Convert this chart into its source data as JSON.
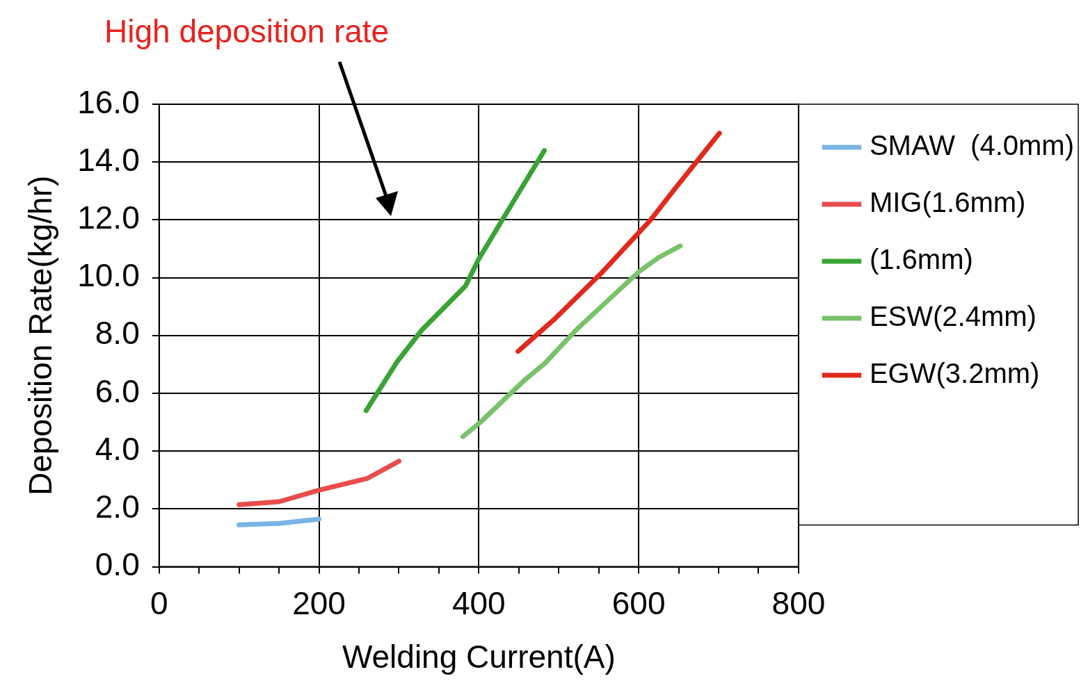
{
  "chart_data": {
    "type": "line",
    "xlabel": "Welding Current(A)",
    "ylabel": "Deposition Rate(kg/hr)",
    "annotations": [
      "High deposition rate"
    ],
    "xlim": [
      0,
      800
    ],
    "xticks": [
      0,
      {
        "value": 50,
        "label": null
      },
      {
        "value": 100,
        "label": null
      },
      {
        "value": 150,
        "label": null
      },
      200,
      {
        "value": 250,
        "label": null
      },
      {
        "value": 300,
        "label": null
      },
      {
        "value": 350,
        "label": null
      },
      400,
      {
        "value": 450,
        "label": null
      },
      {
        "value": 500,
        "label": null
      },
      {
        "value": 550,
        "label": null
      },
      600,
      {
        "value": 650,
        "label": null
      },
      {
        "value": 700,
        "label": null
      },
      {
        "value": 750,
        "label": null
      },
      800
    ],
    "ylim": [
      0,
      16
    ],
    "yticks": [
      {
        "value": 0,
        "label": "0.0"
      },
      {
        "value": 2,
        "label": "2.0"
      },
      {
        "value": 4,
        "label": "4.0"
      },
      {
        "value": 6,
        "label": "6.0"
      },
      {
        "value": 8,
        "label": "8.0"
      },
      {
        "value": 10,
        "label": "10.0"
      },
      {
        "value": 12,
        "label": "12.0"
      },
      {
        "value": 14,
        "label": "14.0"
      },
      {
        "value": 16,
        "label": "16.0"
      }
    ],
    "grid": true,
    "legend": "right",
    "marker": "none",
    "line_style": "solid",
    "series": [
      {
        "name": "SMAW  (4.0mm)",
        "color": "#7ab4e6",
        "x": [
          100,
          150,
          200
        ],
        "values": [
          1.45,
          1.5,
          1.65
        ]
      },
      {
        "name": "MIG(1.6mm)",
        "color": "#e84c4c",
        "x": [
          100,
          150,
          200,
          260,
          300
        ],
        "values": [
          2.15,
          2.25,
          2.65,
          3.05,
          3.65
        ]
      },
      {
        "name": "(1.6mm)",
        "color": "#3aa335",
        "x": [
          259,
          298,
          329,
          383,
          400,
          449,
          482
        ],
        "values": [
          5.4,
          7.1,
          8.2,
          9.7,
          10.65,
          12.9,
          14.4
        ]
      },
      {
        "name": "ESW(2.4mm)",
        "color": "#78c26a",
        "x": [
          380,
          402,
          457,
          483,
          522,
          600,
          625,
          652
        ],
        "values": [
          4.5,
          5.0,
          6.45,
          7.05,
          8.2,
          10.2,
          10.7,
          11.1
        ]
      },
      {
        "name": "EGW(3.2mm)",
        "color": "#e02a1e",
        "x": [
          449,
          496,
          553,
          615,
          646,
          701
        ],
        "values": [
          7.45,
          8.6,
          10.15,
          12.0,
          13.1,
          15.0
        ]
      }
    ]
  }
}
